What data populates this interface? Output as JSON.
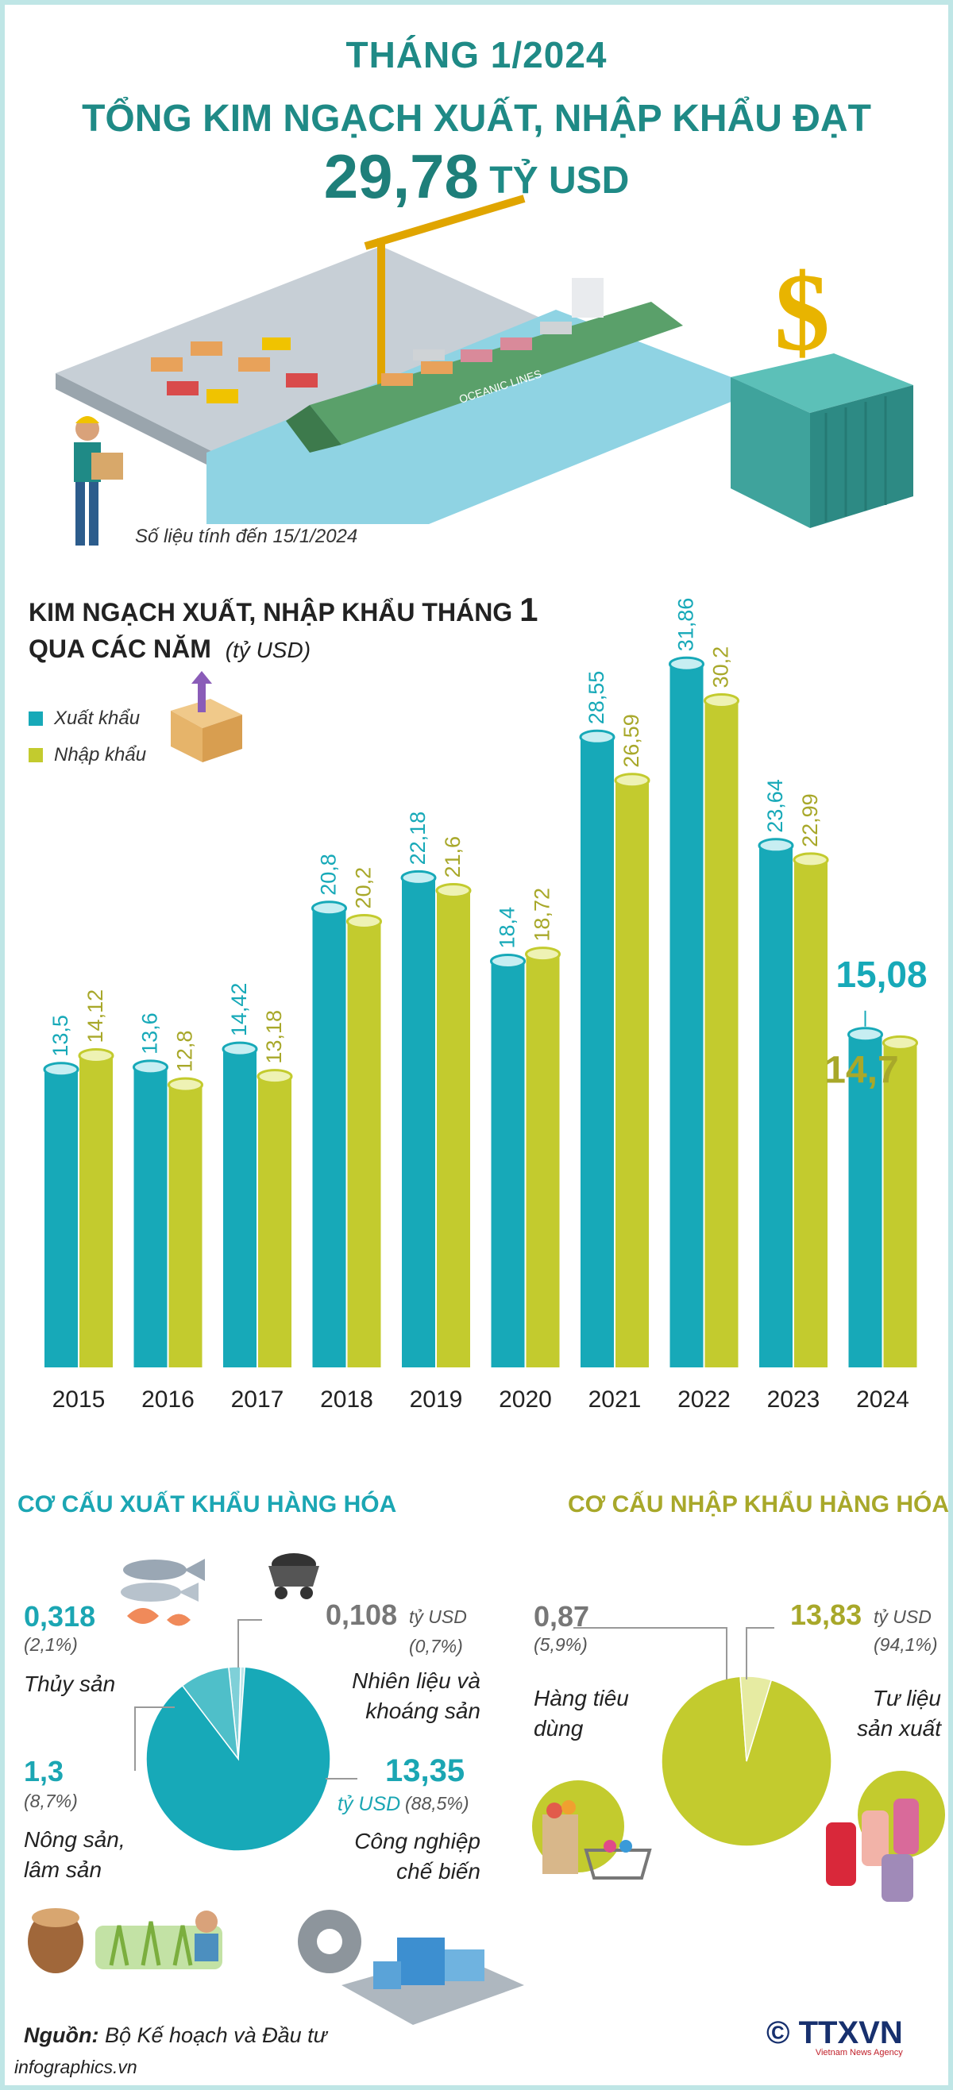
{
  "header": {
    "title_line1": "THÁNG 1/2024",
    "title_line2_a": "TỔNG KIM NGẠCH XUẤT, NHẬP KHẨU ĐẠT",
    "title_line2_value": "29,78",
    "title_line2_b": "TỶ USD",
    "note": "Số liệu tính đến 15/1/2024"
  },
  "illustration": {
    "ship_name": "OCEANIC LINES",
    "currency_symbol": "$"
  },
  "colors": {
    "export": "#17a9b8",
    "import": "#c3cb2e",
    "title": "#1f8a86"
  },
  "chart_data": {
    "type": "bar",
    "title_a": "KIM NGẠCH XUẤT, NHẬP KHẨU THÁNG",
    "title_num": "1",
    "title_b": "QUA CÁC NĂM",
    "unit": "(tỷ USD)",
    "categories": [
      "2015",
      "2016",
      "2017",
      "2018",
      "2019",
      "2020",
      "2021",
      "2022",
      "2023",
      "2024"
    ],
    "series": [
      {
        "name": "Xuất khẩu",
        "values": [
          13.5,
          13.6,
          14.42,
          20.8,
          22.18,
          18.4,
          28.55,
          31.86,
          23.64,
          15.08
        ],
        "labels": [
          "13,5",
          "13,6",
          "14,42",
          "20,8",
          "22,18",
          "18,4",
          "28,55",
          "31,86",
          "23,64",
          "15,08"
        ]
      },
      {
        "name": "Nhập khẩu",
        "values": [
          14.12,
          12.8,
          13.18,
          20.2,
          21.6,
          18.72,
          26.59,
          30.2,
          22.99,
          14.7
        ],
        "labels": [
          "14,12",
          "12,8",
          "13,18",
          "20,2",
          "21,6",
          "18,72",
          "26,59",
          "30,2",
          "22,99",
          "14,7"
        ]
      }
    ],
    "legend_position": "top-left",
    "grid": false
  },
  "export_structure": {
    "title": "CƠ CẤU XUẤT KHẨU HÀNG HÓA",
    "items": [
      {
        "value": "0,318",
        "pct": "(2,1%)",
        "label": "Thủy sản",
        "share": 2.1
      },
      {
        "value": "0,108",
        "unit": "tỷ USD",
        "pct": "(0,7%)",
        "label": "Nhiên liệu và khoáng sản",
        "share": 0.7
      },
      {
        "value": "1,3",
        "pct": "(8,7%)",
        "label": "Nông sản, lâm sản",
        "share": 8.7
      },
      {
        "value": "13,35",
        "unit": "tỷ USD",
        "pct": "(88,5%)",
        "label": "Công nghiệp chế biến",
        "share": 88.5
      }
    ]
  },
  "import_structure": {
    "title": "CƠ CẤU NHẬP KHẨU HÀNG HÓA",
    "items": [
      {
        "value": "0,87",
        "pct": "(5,9%)",
        "label": "Hàng tiêu dùng",
        "share": 5.9
      },
      {
        "value": "13,83",
        "unit": "tỷ USD",
        "pct": "(94,1%)",
        "label": "Tư liệu sản xuất",
        "share": 94.1
      }
    ]
  },
  "footer": {
    "source_label": "Nguồn:",
    "source": "Bộ Kế hoạch và Đầu tư",
    "website": "infographics.vn",
    "logo": "© TTXVN",
    "logo_sub": "Vietnam News Agency"
  }
}
